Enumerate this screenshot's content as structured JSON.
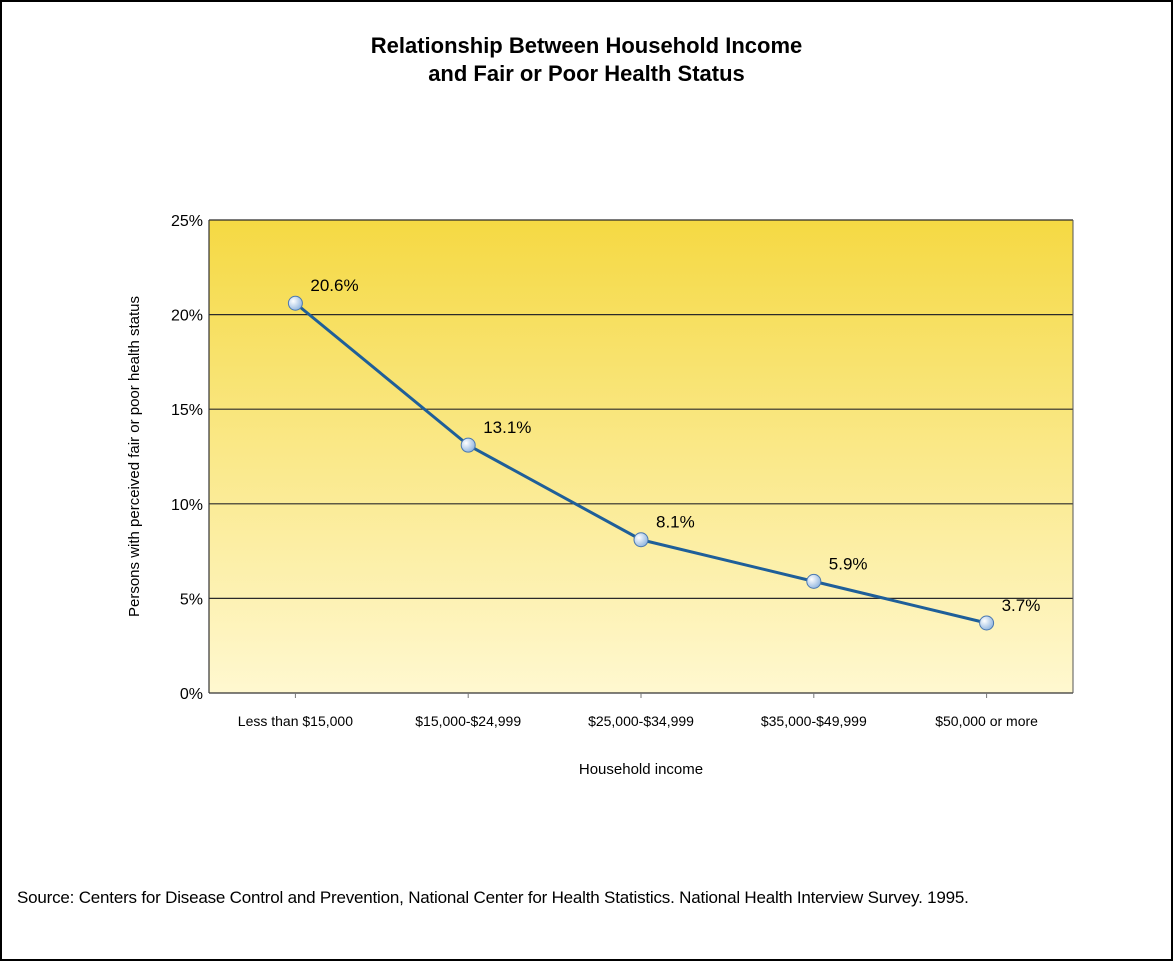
{
  "chart_data": {
    "type": "line",
    "title_lines": [
      "Relationship Between Household Income",
      "and Fair or Poor Health Status"
    ],
    "xlabel": "Household income",
    "ylabel": "Persons with perceived fair or poor health status",
    "categories": [
      "Less than $15,000",
      "$15,000-$24,999",
      "$25,000-$34,999",
      "$35,000-$49,999",
      "$50,000 or more"
    ],
    "values": [
      20.6,
      13.1,
      8.1,
      5.9,
      3.7
    ],
    "data_labels": [
      "20.6%",
      "13.1%",
      "8.1%",
      "5.9%",
      "3.7%"
    ],
    "yticks": [
      "0%",
      "5%",
      "10%",
      "15%",
      "20%",
      "25%"
    ],
    "ylim": [
      0,
      25
    ],
    "grid": true,
    "colors": {
      "line": "#1f5f99",
      "marker": "#8fb4df",
      "plot_top": "#f5d943",
      "plot_bottom": "#fff8d0"
    }
  },
  "source": "Source: Centers for Disease Control and Prevention, National Center for Health Statistics.  National Health Interview Survey. 1995."
}
